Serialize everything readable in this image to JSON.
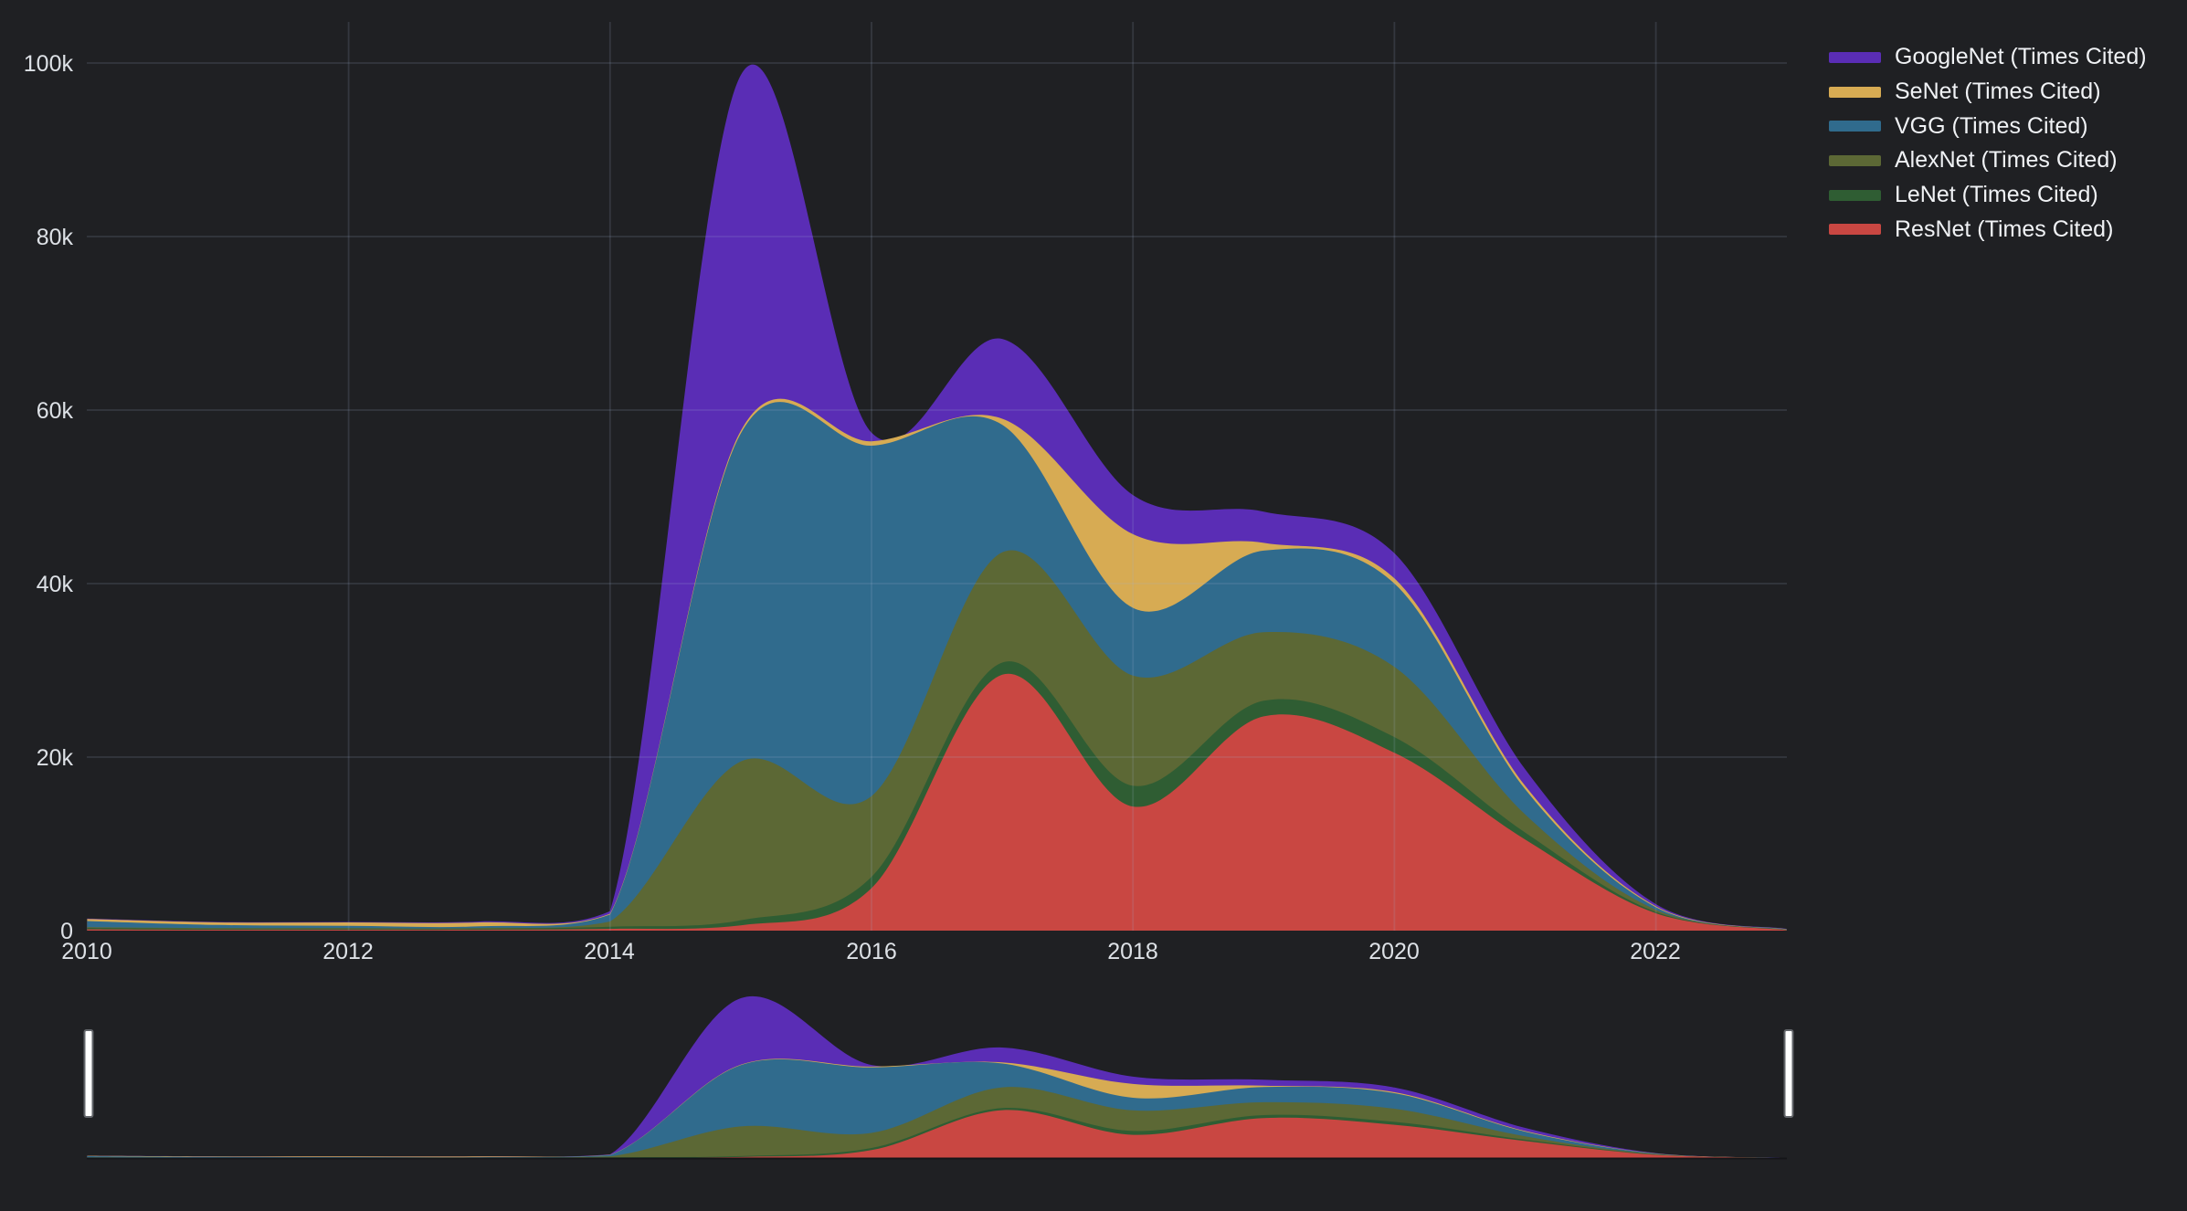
{
  "theme": {
    "background": "#1f2023",
    "grid_color": "rgba(159,178,213,0.16)",
    "axis_text_color": "#dde1e6",
    "legend_text_color": "#f0f2f5",
    "rangeslider_handle_fill": "#ffffff",
    "rangeslider_handle_border": "#62656a",
    "rangeslider_baseline": "#141518"
  },
  "chart_data": {
    "type": "area",
    "stacked": true,
    "line_shape": "spline",
    "title": "",
    "xlabel": "",
    "ylabel": "",
    "grid": true,
    "legend_position": "top-right",
    "rangeslider": true,
    "x": [
      2010,
      2011,
      2012,
      2013,
      2014,
      2015,
      2016,
      2017,
      2018,
      2019,
      2020,
      2021,
      2022,
      2023
    ],
    "xlim": [
      2010,
      2023.05
    ],
    "ylim": [
      0,
      105000
    ],
    "x_tick_values": [
      2010,
      2012,
      2014,
      2016,
      2018,
      2020,
      2022
    ],
    "x_tick_labels": [
      "2010",
      "2012",
      "2014",
      "2016",
      "2018",
      "2020",
      "2022"
    ],
    "y_tick_values": [
      0,
      20000,
      40000,
      60000,
      80000,
      100000
    ],
    "y_tick_labels": [
      "0",
      "20k",
      "40k",
      "60k",
      "80k",
      "100k"
    ],
    "stack_order_bottom_to_top": [
      "ResNet",
      "LeNet",
      "AlexNet",
      "VGG",
      "SeNet",
      "GoogleNet"
    ],
    "series": [
      {
        "name": "GoogleNet",
        "legend_label": "GoogleNet (Times Cited)",
        "color": "#5a2db5",
        "values": [
          50,
          50,
          50,
          100,
          300,
          41000,
          1000,
          9200,
          4500,
          3600,
          2900,
          1900,
          250,
          30
        ]
      },
      {
        "name": "SeNet",
        "legend_label": "SeNet (Times Cited)",
        "color": "#d7ab53",
        "values": [
          250,
          300,
          400,
          450,
          100,
          300,
          500,
          700,
          8500,
          900,
          600,
          400,
          100,
          20
        ]
      },
      {
        "name": "VGG",
        "legend_label": "VGG (Times Cited)",
        "color": "#306b8d",
        "values": [
          700,
          350,
          250,
          200,
          800,
          37800,
          40400,
          14700,
          7800,
          9400,
          9600,
          2900,
          300,
          50
        ]
      },
      {
        "name": "AlexNet",
        "legend_label": "AlexNet (Times Cited)",
        "color": "#5c6835",
        "values": [
          100,
          100,
          100,
          100,
          600,
          18300,
          9300,
          12700,
          12700,
          7900,
          8100,
          2100,
          250,
          30
        ]
      },
      {
        "name": "LeNet",
        "legend_label": "LeNet (Times Cited)",
        "color": "#2f5d33",
        "values": [
          150,
          100,
          100,
          100,
          250,
          600,
          1300,
          1400,
          2400,
          1800,
          1800,
          800,
          150,
          20
        ]
      },
      {
        "name": "ResNet",
        "legend_label": "ResNet (Times Cited)",
        "color": "#c94742",
        "values": [
          150,
          100,
          100,
          100,
          200,
          600,
          4900,
          29500,
          14300,
          24700,
          20500,
          10500,
          2000,
          50
        ]
      }
    ]
  }
}
